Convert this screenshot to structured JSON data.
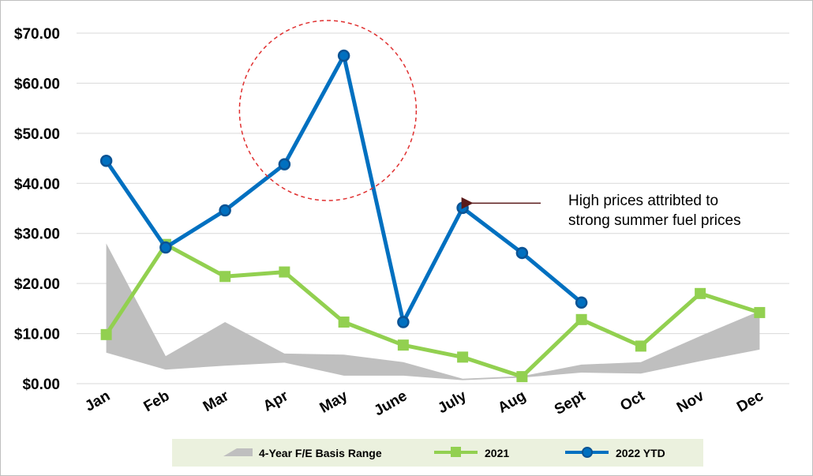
{
  "chart_data": {
    "type": "line",
    "categories": [
      "Jan",
      "Feb",
      "Mar",
      "Apr",
      "May",
      "June",
      "July",
      "Aug",
      "Sept",
      "Oct",
      "Nov",
      "Dec"
    ],
    "y_ticks": [
      "$0.00",
      "$10.00",
      "$20.00",
      "$30.00",
      "$40.00",
      "$50.00",
      "$60.00",
      "$70.00"
    ],
    "ylim": [
      0,
      70
    ],
    "grid": true,
    "legend_position": "bottom",
    "range_band": {
      "name": "4-Year F/E Basis Range",
      "color": "#bfbfbf",
      "upper": [
        28,
        5.5,
        12.3,
        6,
        5.8,
        4.3,
        1.0,
        1.5,
        3.8,
        4.3,
        9.5,
        14.5
      ],
      "lower": [
        6.2,
        2.8,
        3.6,
        4.2,
        1.6,
        1.6,
        0.7,
        1.2,
        2.2,
        2.0,
        4.5,
        6.8
      ]
    },
    "series": [
      {
        "name": "2021",
        "color": "#92d050",
        "marker": "square",
        "values": [
          9.8,
          27.8,
          21.4,
          22.3,
          12.3,
          7.7,
          5.3,
          1.4,
          12.8,
          7.5,
          18.0,
          14.2
        ]
      },
      {
        "name": "2022 YTD",
        "color": "#0070c0",
        "marker": "circle",
        "values": [
          44.5,
          27.2,
          34.6,
          43.8,
          65.5,
          12.3,
          35.1,
          26.1,
          16.2,
          null,
          null,
          null
        ]
      }
    ],
    "annotations": [
      {
        "text_lines": [
          "High prices attribted to",
          "strong summer fuel prices"
        ],
        "points_to": {
          "category": "July",
          "value": 35.1
        },
        "arrow_color": "#5a1a1a"
      },
      {
        "shape": "dashed-circle",
        "color": "#e03030",
        "highlights": [
          "Mar",
          "Apr",
          "May"
        ]
      }
    ]
  }
}
